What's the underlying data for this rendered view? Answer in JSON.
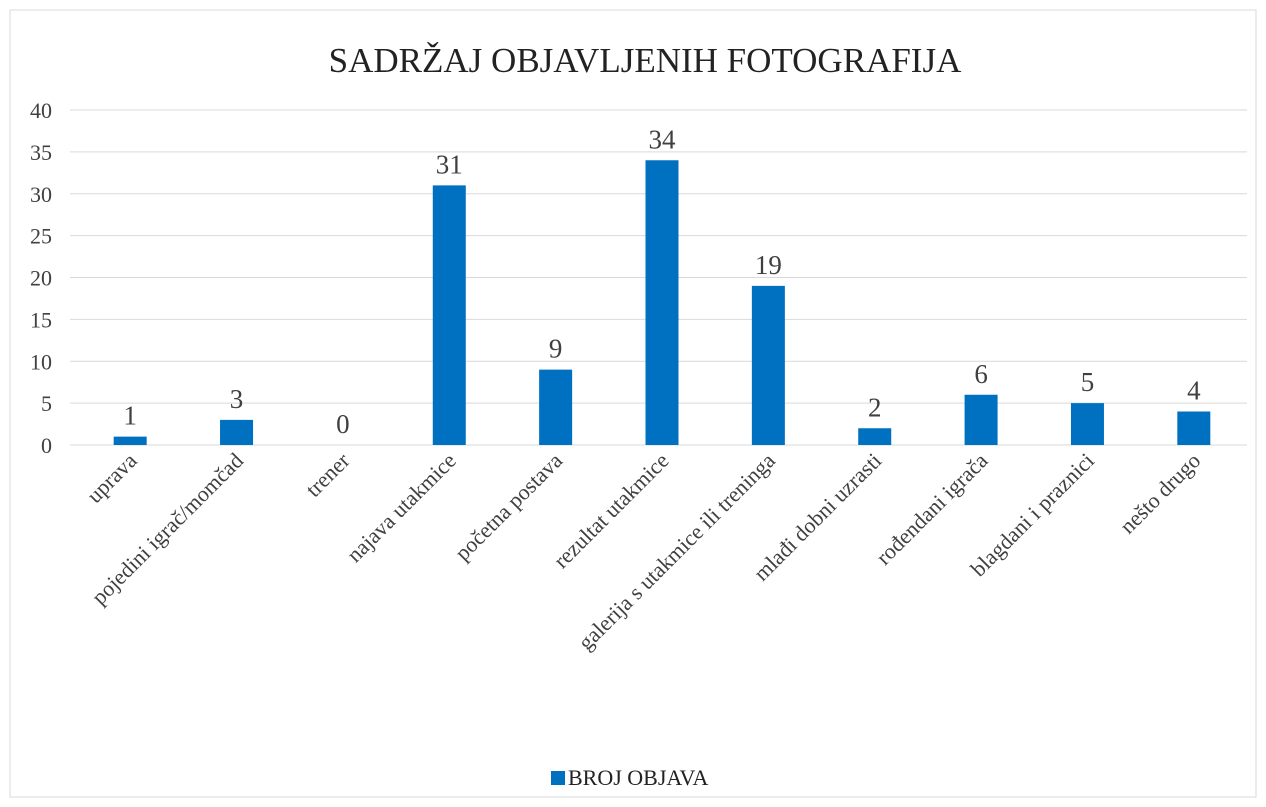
{
  "chart_data": {
    "type": "bar",
    "title": "SADRŽAJ OBJAVLJENIH FOTOGRAFIJA",
    "categories": [
      "uprava",
      "pojedini igrač/momčad",
      "trener",
      "najava utakmice",
      "početna postava",
      "rezultat utakmice",
      "galerija s utakmice ili treninga",
      "mlađi dobni uzrasti",
      "rođendani igrača",
      "blagdani i praznici",
      "nešto drugo"
    ],
    "series": [
      {
        "name": "BROJ OBJAVA",
        "color": "#0070c0",
        "values": [
          1,
          3,
          0,
          31,
          9,
          34,
          19,
          2,
          6,
          5,
          4
        ]
      }
    ],
    "ylim": [
      0,
      40
    ],
    "yticks": [
      0,
      5,
      10,
      15,
      20,
      25,
      30,
      35,
      40
    ],
    "grid": true,
    "legend": "bottom"
  }
}
